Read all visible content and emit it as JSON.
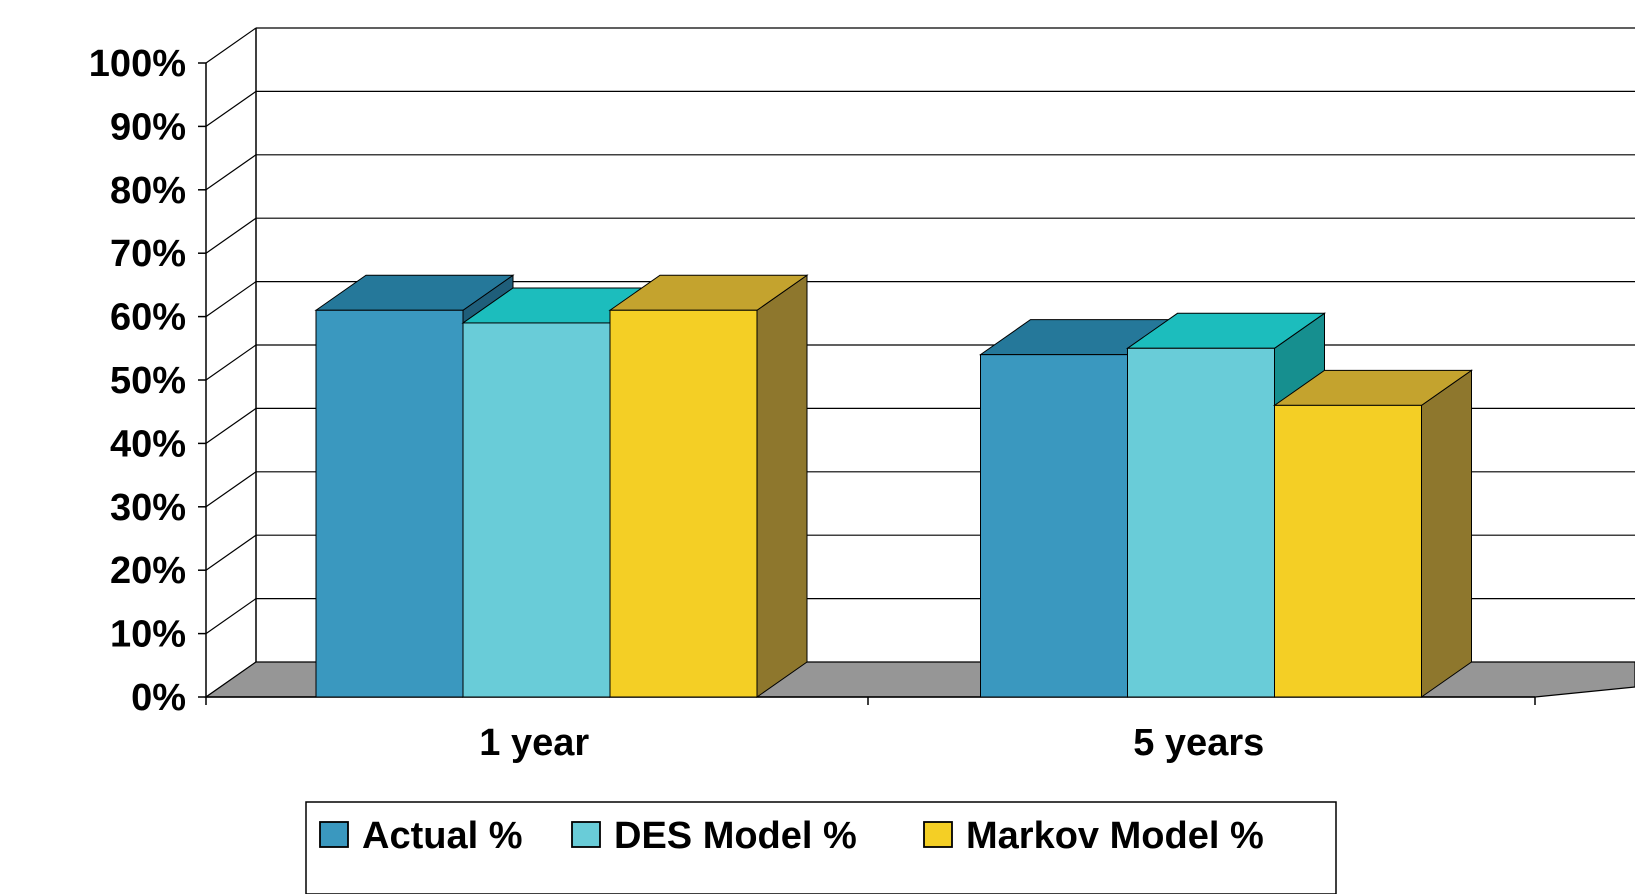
{
  "chart_data": {
    "type": "bar",
    "categories": [
      "1 year",
      "5 years"
    ],
    "series": [
      {
        "name": "Actual %",
        "values": [
          61,
          54
        ]
      },
      {
        "name": "DES Model %",
        "values": [
          59,
          55
        ]
      },
      {
        "name": "Markov Model %",
        "values": [
          61,
          46
        ]
      }
    ],
    "ylim": [
      0,
      100
    ],
    "yticks": [
      "0%",
      "10%",
      "20%",
      "30%",
      "40%",
      "50%",
      "60%",
      "70%",
      "80%",
      "90%",
      "100%"
    ],
    "grid": true,
    "legend": "bottom",
    "colors": {
      "Actual %": {
        "front": "#3A98BF",
        "top": "#25789A",
        "side": "#1F5E7A"
      },
      "DES Model %": {
        "front": "#69CCD8",
        "top": "#1CBDBD",
        "side": "#168F8F"
      },
      "Markov Model %": {
        "front": "#F4CF25",
        "top": "#C4A32E",
        "side": "#8E772D"
      },
      "floor": "#969696"
    }
  }
}
